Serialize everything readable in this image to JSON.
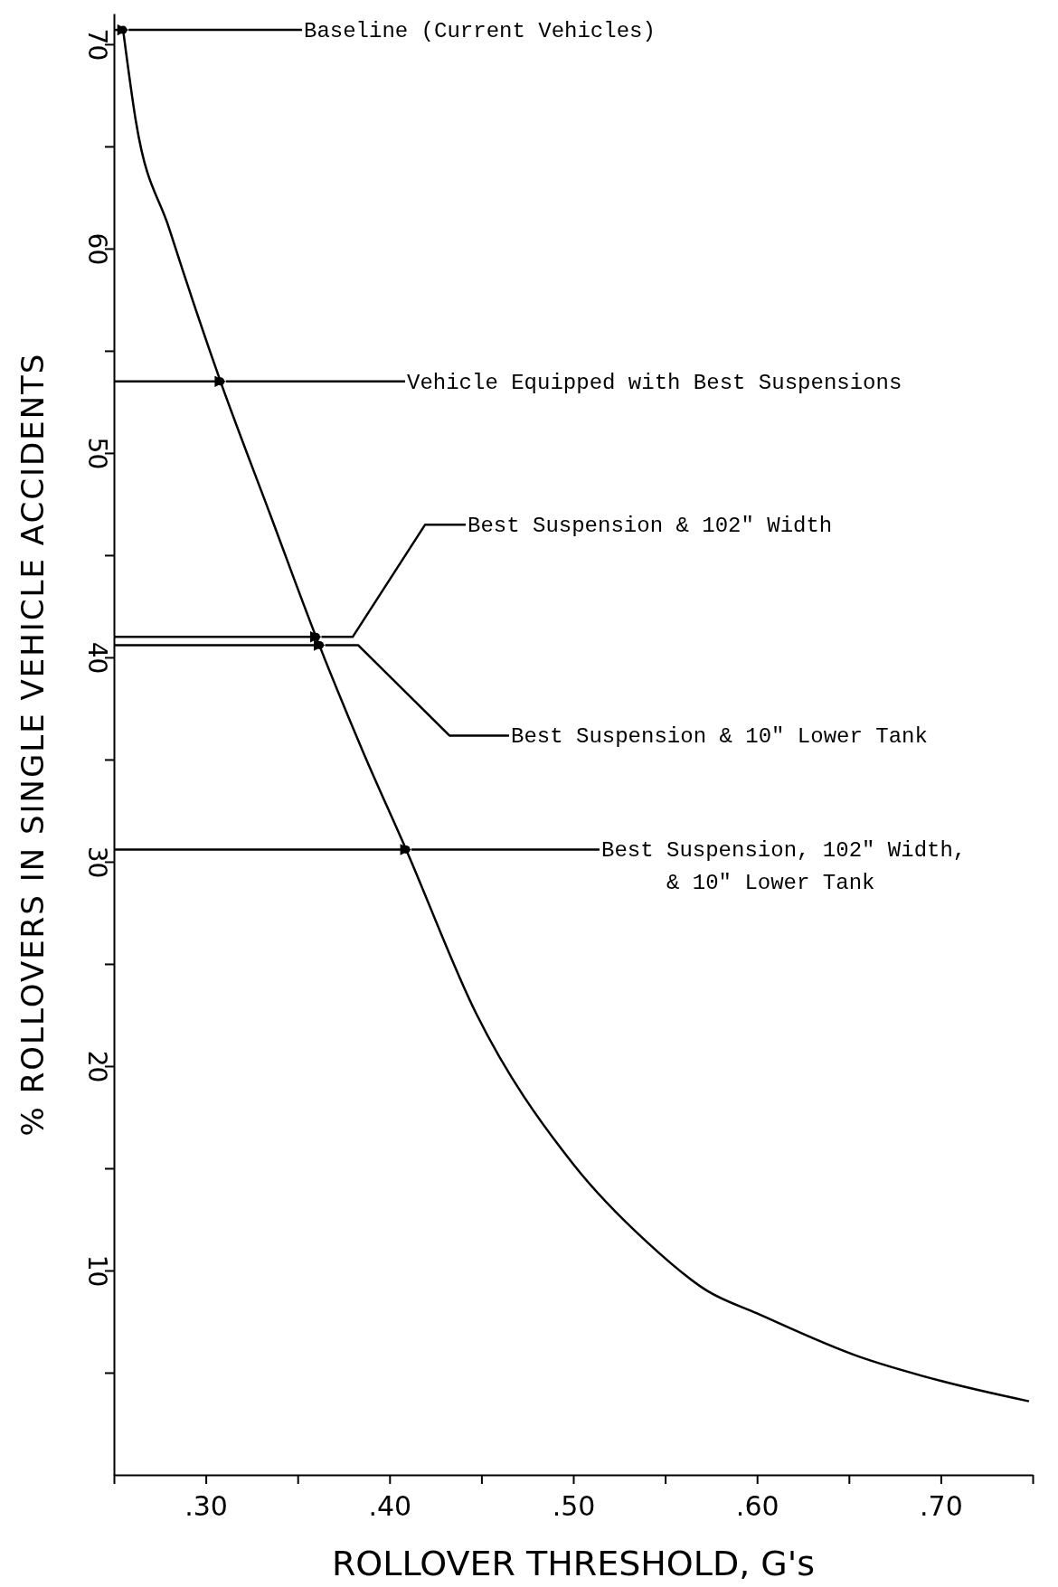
{
  "chart_data": {
    "type": "line",
    "xlabel": "ROLLOVER THRESHOLD, G's",
    "ylabel": "% ROLLOVERS IN SINGLE VEHICLE ACCIDENTS",
    "x": [
      0.255,
      0.262,
      0.28,
      0.308,
      0.335,
      0.36,
      0.385,
      0.409,
      0.447,
      0.5,
      0.54,
      0.573,
      0.6,
      0.655,
      0.7,
      0.748
    ],
    "series": [
      {
        "color": "#000000",
        "values": [
          70.7,
          66.2,
          61,
          53.5,
          47,
          41,
          35.5,
          30.6,
          22.6,
          15.2,
          11.4,
          9.0,
          7.9,
          5.8,
          4.6,
          3.6
        ]
      }
    ],
    "xlim": [
      0.25,
      0.75
    ],
    "ylim": [
      0,
      71.5
    ],
    "xticks": [
      {
        "value": 0.25,
        "label": null
      },
      {
        "value": 0.3,
        "label": ".30"
      },
      {
        "value": 0.35,
        "label": null
      },
      {
        "value": 0.4,
        "label": ".40"
      },
      {
        "value": 0.45,
        "label": null
      },
      {
        "value": 0.5,
        "label": ".50"
      },
      {
        "value": 0.55,
        "label": null
      },
      {
        "value": 0.6,
        "label": ".60"
      },
      {
        "value": 0.65,
        "label": null
      },
      {
        "value": 0.7,
        "label": ".70"
      },
      {
        "value": 0.75,
        "label": null
      }
    ],
    "yticks": [
      {
        "value": 5,
        "label": null
      },
      10,
      {
        "value": 15,
        "label": null
      },
      20,
      {
        "value": 25,
        "label": null
      },
      30,
      {
        "value": 35,
        "label": null
      },
      40,
      {
        "value": 45,
        "label": null
      },
      50,
      {
        "value": 55,
        "label": null
      },
      60,
      {
        "value": 65,
        "label": null
      },
      70
    ],
    "marker": "none",
    "grid": false,
    "line_style": "solid",
    "annotations": [
      {
        "text": "Baseline (Current Vehicles)",
        "x": 0.255,
        "y": 70.7
      },
      {
        "text": "Vehicle Equipped with Best Suspensions",
        "x": 0.308,
        "y": 53.5
      },
      {
        "text": "Best Suspension & 102\" Width",
        "x": 0.36,
        "y": 41
      },
      {
        "text": "Best Suspension & 10\" Lower Tank",
        "x": 0.362,
        "y": 40.6
      },
      {
        "text": "Best Suspension, 102\" Width,\n& 10\" Lower Tank",
        "x": 0.409,
        "y": 30.6
      }
    ]
  }
}
